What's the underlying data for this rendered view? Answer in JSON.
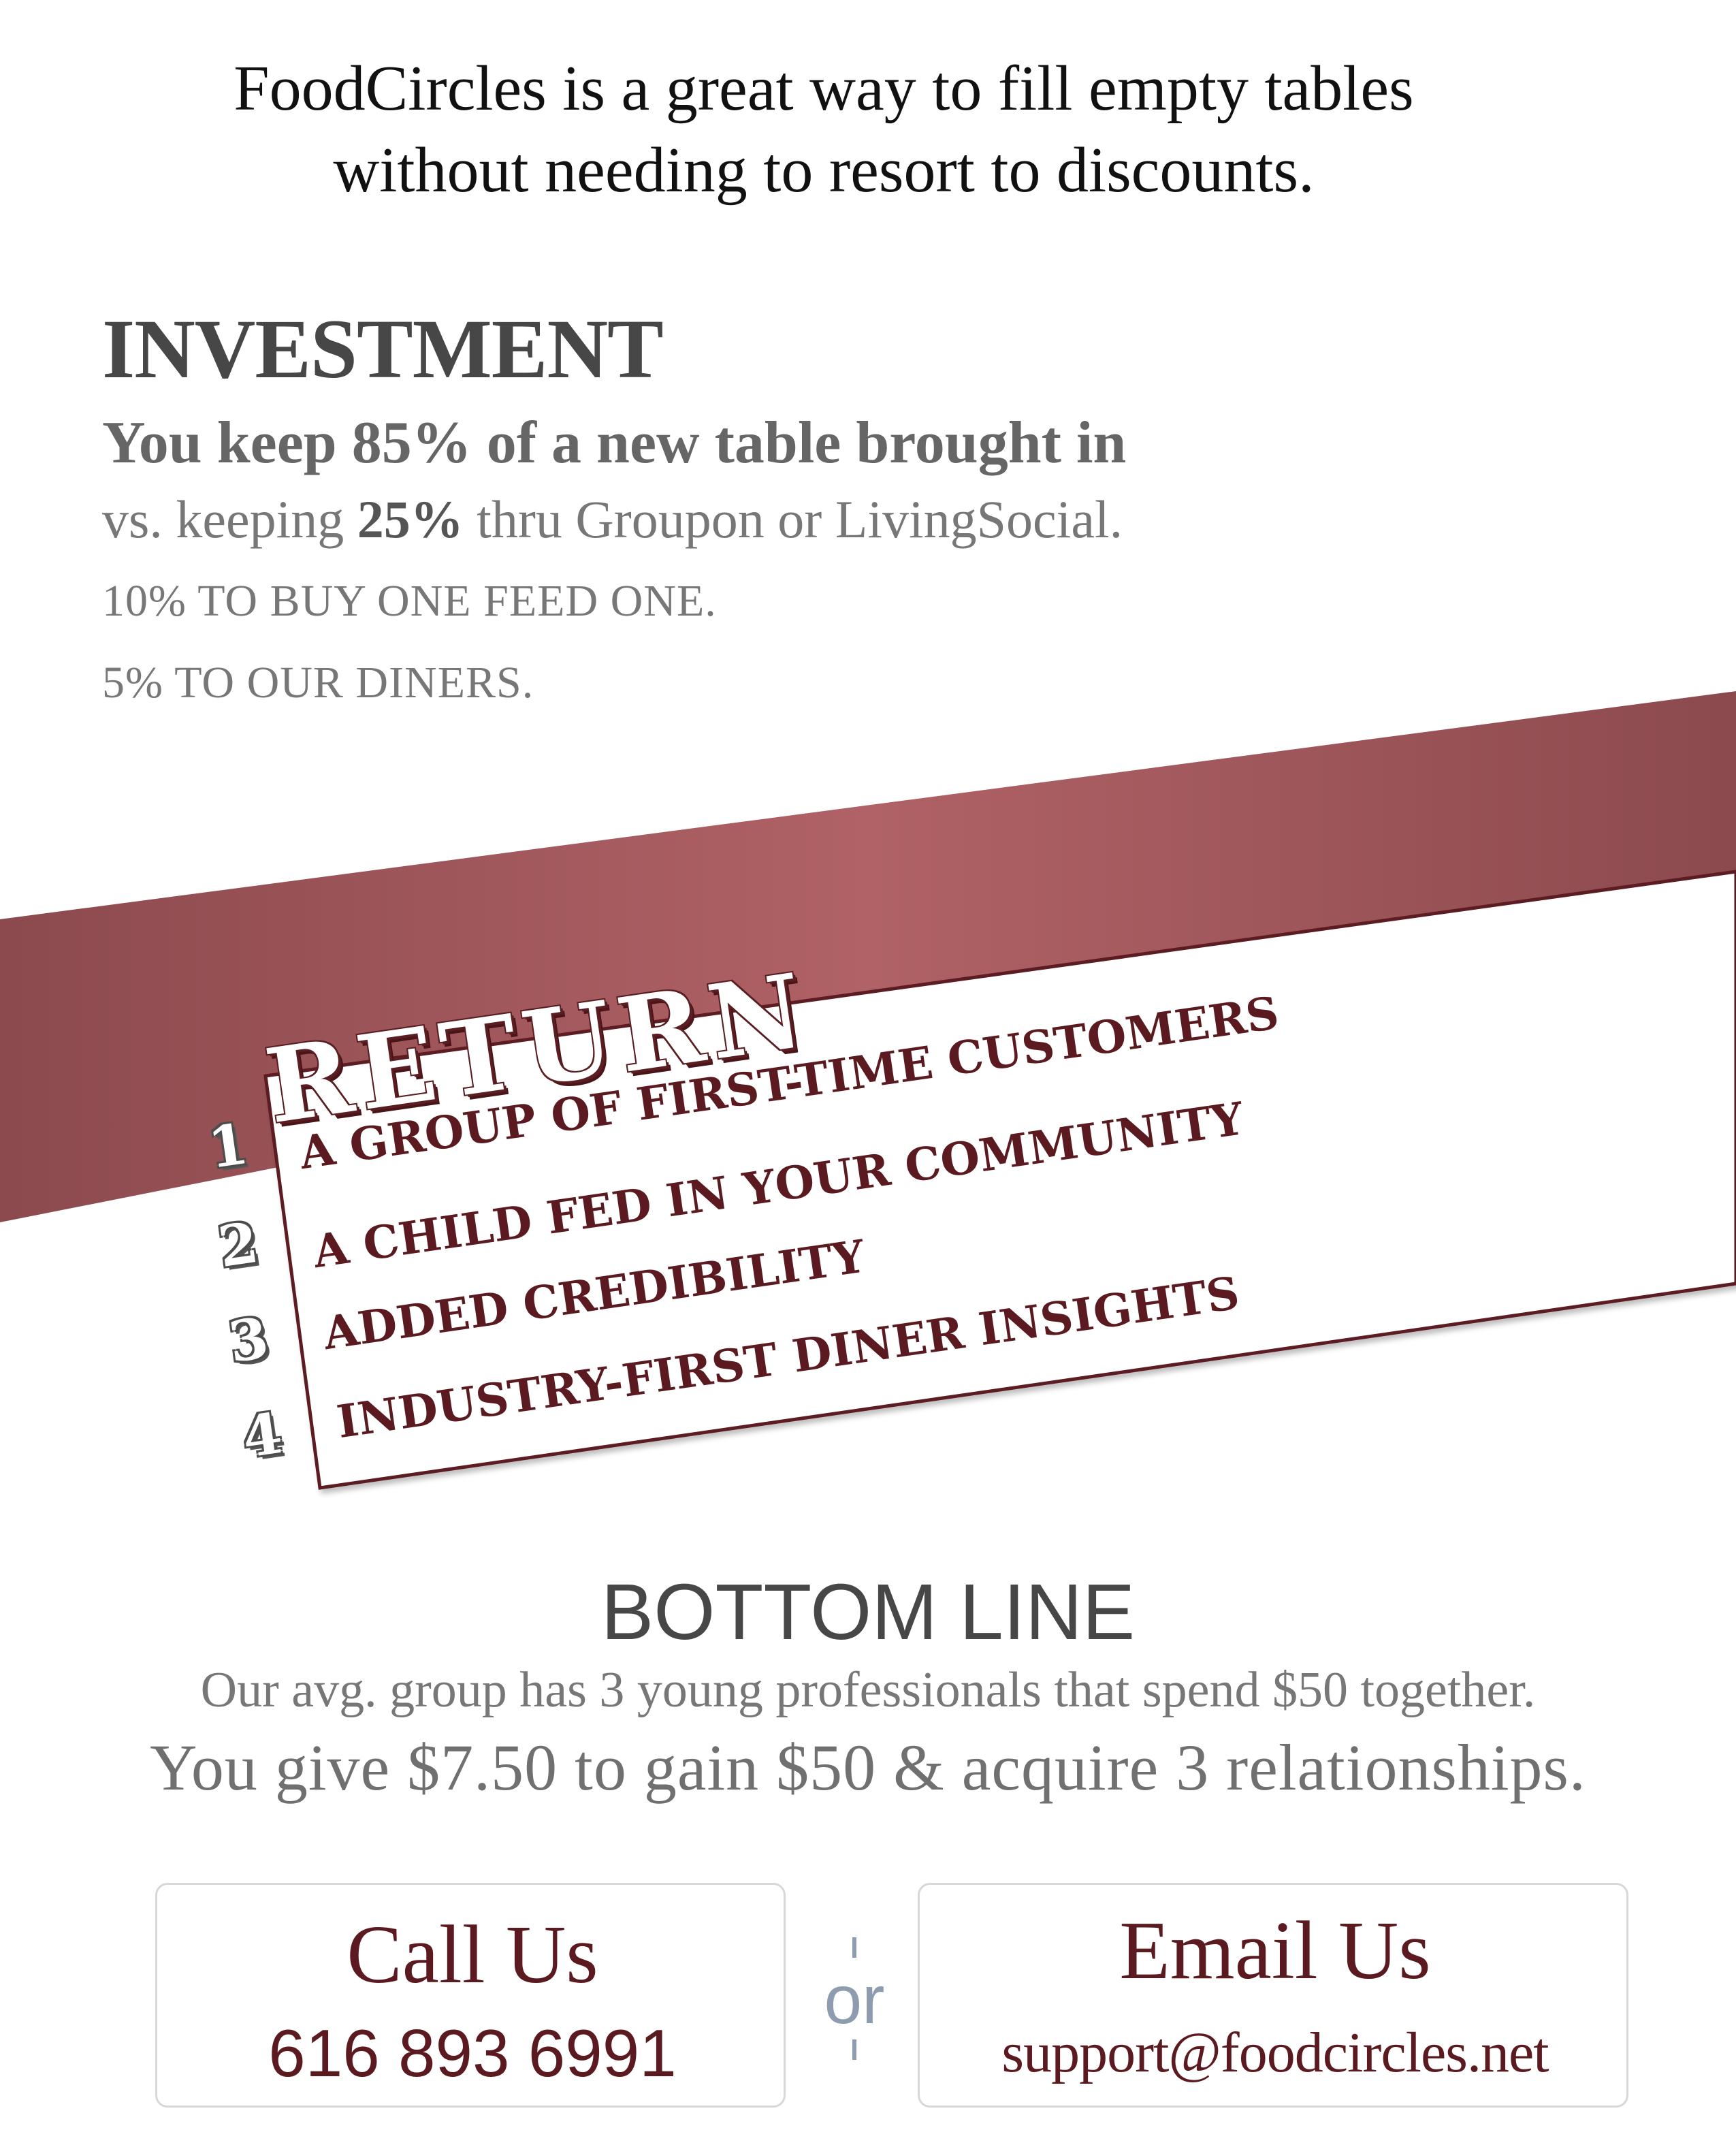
{
  "intro": {
    "line1": "FoodCircles is a great way to fill empty tables",
    "line2": "without needing to resort to discounts."
  },
  "investment": {
    "title": "INVESTMENT",
    "headline": "You keep 85% of a new table brought in",
    "vs_prefix": "vs. keeping ",
    "vs_bold": "25%",
    "vs_suffix": " thru Groupon or LivingSocial.",
    "line_feed": "10% TO BUY ONE FEED ONE.",
    "line_diners": "5% TO OUR DINERS."
  },
  "return": {
    "title": "RETURN",
    "items": [
      {
        "number": "1",
        "label": "A GROUP OF FIRST-TIME CUSTOMERS"
      },
      {
        "number": "2",
        "label": "A CHILD FED IN YOUR COMMUNITY"
      },
      {
        "number": "3",
        "label": "ADDED CREDIBILITY"
      },
      {
        "number": "4",
        "label": "INDUSTRY-FIRST DINER INSIGHTS"
      }
    ]
  },
  "bottom_line": {
    "title": "BOTTOM LINE",
    "subtitle": "Our avg. group has 3 young professionals that spend $50 together.",
    "main": "You give $7.50 to gain $50 & acquire 3 relationships."
  },
  "contact": {
    "call_title": "Call Us",
    "phone": "616 893 6991",
    "separator": "or",
    "email_title": "Email Us",
    "email": "support@foodcircles.net"
  },
  "colors": {
    "banner_dark": "#8c4a4e",
    "banner_light": "#b06266",
    "text_maroon": "#5b1a20",
    "separator_blue": "#8e9cb0"
  }
}
